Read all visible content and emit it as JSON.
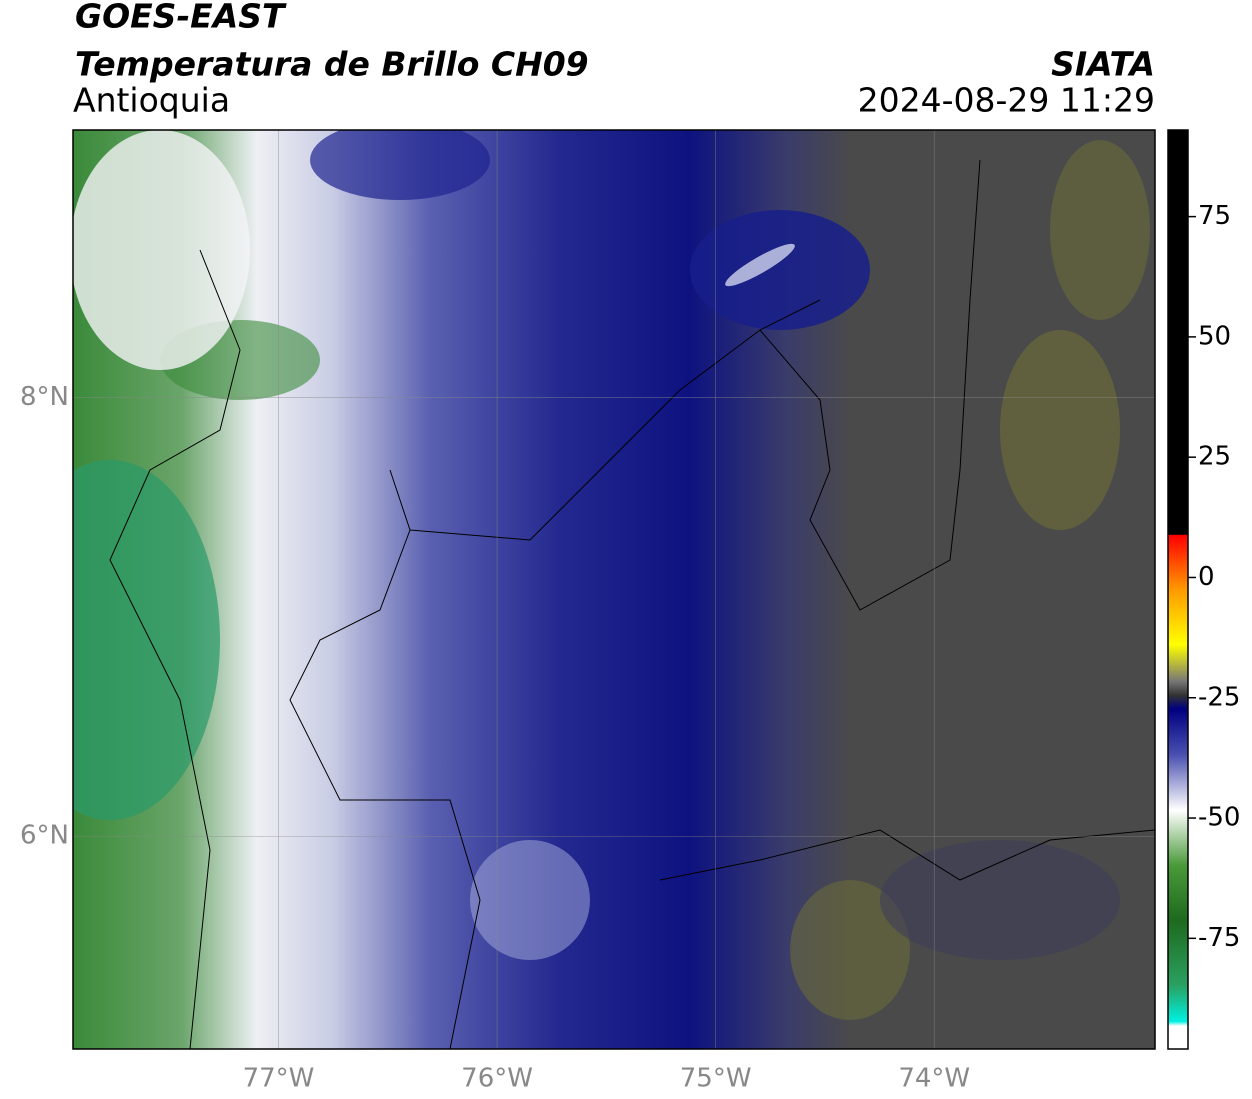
{
  "title": "GOES-EAST",
  "subtitle": "Temperatura de Brillo CH09",
  "region": "Antioquia",
  "source": "SIATA",
  "timestamp": "2024-08-29 11:29",
  "map": {
    "xlim": [
      -77.94,
      -72.99
    ],
    "ylim": [
      5.03,
      9.22
    ],
    "xticks": [
      {
        "value": -77,
        "label": "77°W"
      },
      {
        "value": -76,
        "label": "76°W"
      },
      {
        "value": -75,
        "label": "75°W"
      },
      {
        "value": -74,
        "label": "74°W"
      }
    ],
    "yticks": [
      {
        "value": 6,
        "label": "6°N"
      },
      {
        "value": 8,
        "label": "8°N"
      }
    ],
    "grid": true
  },
  "colorbar": {
    "lim": [
      -98,
      93
    ],
    "ticks": [
      75,
      50,
      25,
      0,
      -25,
      -50,
      -75
    ]
  }
}
